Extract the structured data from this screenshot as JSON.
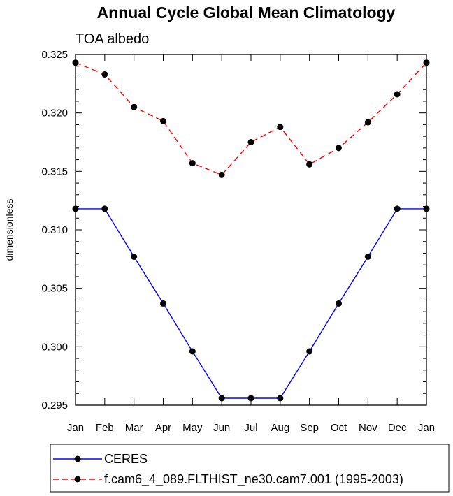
{
  "chart_data": {
    "type": "line",
    "title": "Annual Cycle Global Mean Climatology",
    "subtitle": "TOA albedo",
    "xlabel": "",
    "ylabel": "dimensionless",
    "categories": [
      "Jan",
      "Feb",
      "Mar",
      "Apr",
      "May",
      "Jun",
      "Jul",
      "Aug",
      "Sep",
      "Oct",
      "Nov",
      "Dec",
      "Jan"
    ],
    "ylim": [
      0.295,
      0.325
    ],
    "yticks": [
      "0.295",
      "0.300",
      "0.305",
      "0.310",
      "0.315",
      "0.320",
      "0.325"
    ],
    "series": [
      {
        "name": "CERES",
        "color": "#0000ff",
        "dash": "solid",
        "values": [
          0.3118,
          0.3118,
          0.3077,
          0.3037,
          0.2996,
          0.2956,
          0.2956,
          0.2956,
          0.2996,
          0.3037,
          0.3077,
          0.3118,
          0.3118
        ]
      },
      {
        "name": "f.cam6_4_089.FLTHIST_ne30.cam7.001 (1995-2003)",
        "color": "#ff0000",
        "dash": "dashed",
        "values": [
          0.3243,
          0.3233,
          0.3205,
          0.3193,
          0.3157,
          0.3147,
          0.3175,
          0.3188,
          0.3156,
          0.317,
          0.3192,
          0.3216,
          0.3243
        ]
      }
    ],
    "legend_position": "bottom"
  }
}
